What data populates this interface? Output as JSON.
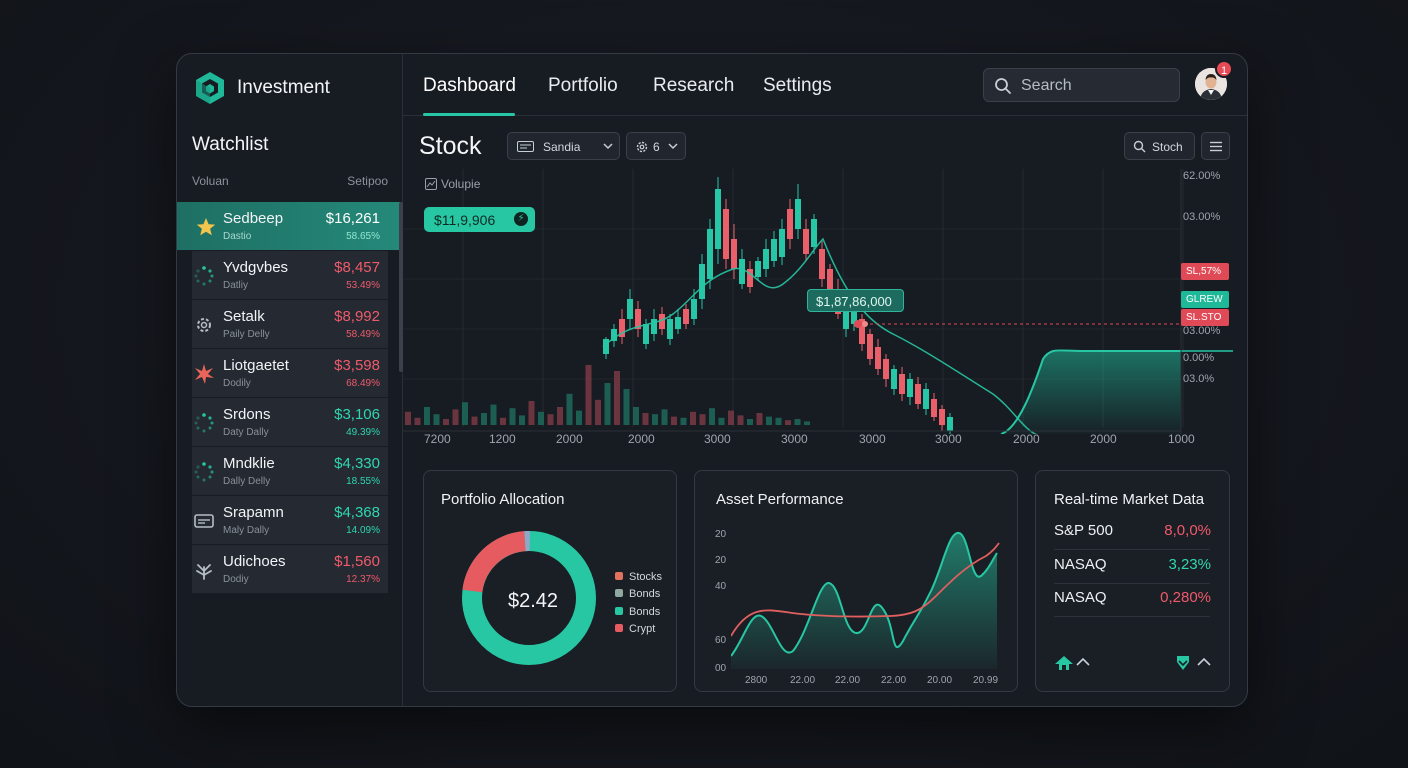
{
  "brand": {
    "name": "Investment"
  },
  "nav": {
    "tabs": [
      {
        "label": "Dashboard",
        "active": true
      },
      {
        "label": "Portfolio"
      },
      {
        "label": "Research"
      },
      {
        "label": "Settings"
      }
    ],
    "search_placeholder": "Search",
    "notification_count": "1"
  },
  "watchlist": {
    "title": "Watchlist",
    "col_left": "Voluan",
    "col_right": "Setipoo",
    "items": [
      {
        "name": "Sedbeep",
        "sub": "Dastio",
        "price": "$16,261",
        "change": "58.65%",
        "trend": "up",
        "icon": "star-icon",
        "active": true
      },
      {
        "name": "Yvdgvbes",
        "sub": "Datliy",
        "price": "$8,457",
        "change": "53.49%",
        "trend": "down",
        "icon": "spinner-icon"
      },
      {
        "name": "Setalk",
        "sub": "Paily Delly",
        "price": "$8,992",
        "change": "58.49%",
        "trend": "down",
        "icon": "gear-icon"
      },
      {
        "name": "Liotgaetet",
        "sub": "Dodily",
        "price": "$3,598",
        "change": "68.49%",
        "trend": "down",
        "icon": "burst-icon"
      },
      {
        "name": "Srdons",
        "sub": "Daty Dally",
        "price": "$3,106",
        "change": "49.39%",
        "trend": "up",
        "icon": "spinner-icon"
      },
      {
        "name": "Mndklie",
        "sub": "Dally Delly",
        "price": "$4,330",
        "change": "18.55%",
        "trend": "up",
        "icon": "spinner-icon"
      },
      {
        "name": "Srapamn",
        "sub": "Maly Dally",
        "price": "$4,368",
        "change": "14.09%",
        "trend": "up",
        "icon": "card-icon"
      },
      {
        "name": "Udichoes",
        "sub": "Dodiy",
        "price": "$1,560",
        "change": "12.37%",
        "trend": "down",
        "icon": "leaf-icon"
      }
    ]
  },
  "chart_header": {
    "title": "Stock",
    "select_label": "Sandia",
    "interval_label": "6",
    "search_button": "Stoch",
    "volume_label": "Volupie"
  },
  "main_chart": {
    "price_pill": "$11,9,906",
    "mid_pill": "$1,87,86,000",
    "y_labels": [
      "62.00%",
      "03.00%",
      "03.00%",
      "0.00%",
      "03.0%"
    ],
    "tags": [
      {
        "text": "SL,57%",
        "color": "#e04a57"
      },
      {
        "text": "GLREW",
        "color": "#1fb898"
      },
      {
        "text": "SL.STO",
        "color": "#e04a57"
      }
    ],
    "x_labels": [
      "7200",
      "1200",
      "2000",
      "2000",
      "3000",
      "3000",
      "3000",
      "3000",
      "2000",
      "2000",
      "1000"
    ]
  },
  "portfolio": {
    "title": "Portfolio Allocation",
    "center_value": "$2.42",
    "legend": [
      {
        "label": "Stocks",
        "color": "#e0735f"
      },
      {
        "label": "Bonds",
        "color": "#8fa8a0"
      },
      {
        "label": "Bonds",
        "color": "#27c7a3"
      },
      {
        "label": "Crypt",
        "color": "#e65b60"
      }
    ]
  },
  "performance": {
    "title": "Asset Performance",
    "y_labels": [
      "20",
      "20",
      "40",
      "60",
      "00"
    ],
    "x_labels": [
      "2800",
      "22.00",
      "22.00",
      "22.00",
      "20.00",
      "20.99"
    ]
  },
  "market": {
    "title": "Real-time Market Data",
    "rows": [
      {
        "name": "S&P 500",
        "value": "8,0,0%",
        "trend": "down"
      },
      {
        "name": "NASAQ",
        "value": "3,23%",
        "trend": "up"
      },
      {
        "name": "NASAQ",
        "value": "0,280%",
        "trend": "down"
      }
    ]
  }
}
